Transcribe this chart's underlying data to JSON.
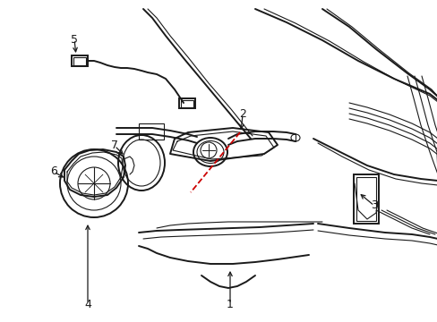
{
  "bg_color": "#ffffff",
  "line_color": "#1a1a1a",
  "red_dash_color": "#cc0000",
  "figsize": [
    4.89,
    3.6
  ],
  "dpi": 100
}
